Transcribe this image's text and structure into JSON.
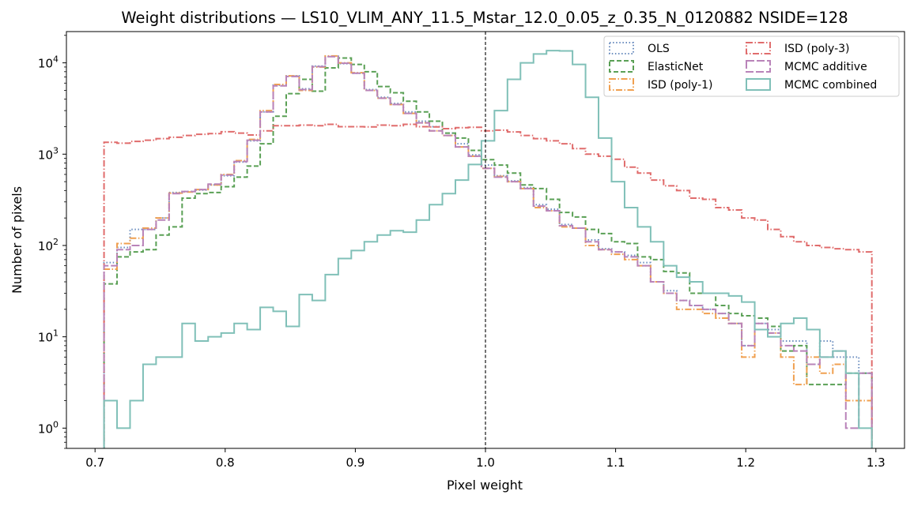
{
  "chart_data": {
    "type": "step-histogram",
    "title": "Weight distributions — LS10_VLIM_ANY_11.5_Mstar_12.0_0.05_z_0.35_N_0120882  NSIDE=128",
    "xlabel": "Pixel weight",
    "ylabel": "Number of pixels",
    "xlim": [
      0.678,
      1.322
    ],
    "ylim": [
      0.6,
      22000
    ],
    "yscale": "log",
    "xticks": [
      "0.7",
      "0.8",
      "0.9",
      "1.0",
      "1.1",
      "1.2",
      "1.3"
    ],
    "xtick_values": [
      0.7,
      0.8,
      0.9,
      1.0,
      1.1,
      1.2,
      1.3
    ],
    "yticks": [
      {
        "value": 1,
        "base": "10",
        "exp": "0"
      },
      {
        "value": 10,
        "base": "10",
        "exp": "1"
      },
      {
        "value": 100,
        "base": "10",
        "exp": "2"
      },
      {
        "value": 1000,
        "base": "10",
        "exp": "3"
      },
      {
        "value": 10000,
        "base": "10",
        "exp": "4"
      }
    ],
    "reference_line": {
      "x": 1.0,
      "style": "dashed",
      "color": "#000000"
    },
    "bins": {
      "start": 0.7069,
      "width": 0.01,
      "count": 59
    },
    "legend": {
      "location": "upper right",
      "columns": 2
    },
    "series": [
      {
        "name": "OLS",
        "color": "#6c8ebf",
        "dash": "1.5,2.6",
        "values": [
          65,
          95,
          150,
          150,
          200,
          380,
          390,
          405,
          460,
          580,
          820,
          1400,
          2900,
          5700,
          7200,
          5200,
          9200,
          11800,
          9800,
          7700,
          5100,
          4200,
          3600,
          2900,
          2300,
          2000,
          1700,
          1300,
          980,
          760,
          580,
          510,
          430,
          280,
          250,
          170,
          155,
          115,
          92,
          85,
          78,
          65,
          40,
          32,
          25,
          22,
          20,
          18,
          14,
          8,
          14,
          12,
          9,
          9,
          5,
          9,
          6,
          6,
          4
        ]
      },
      {
        "name": "ElasticNet",
        "color": "#5aa055",
        "dash": "6,3",
        "values": [
          38,
          75,
          85,
          90,
          130,
          160,
          330,
          370,
          380,
          440,
          560,
          740,
          1300,
          2600,
          4600,
          6600,
          4900,
          8800,
          11300,
          9600,
          8000,
          5500,
          4700,
          3800,
          2900,
          2300,
          1700,
          1500,
          1100,
          870,
          760,
          620,
          460,
          420,
          320,
          230,
          205,
          150,
          135,
          110,
          105,
          75,
          70,
          52,
          50,
          30,
          30,
          22,
          18,
          17,
          16,
          13,
          7,
          8,
          3,
          3,
          3,
          4,
          4
        ]
      },
      {
        "name": "ISD (poly-1)",
        "color": "#f0a050",
        "dash": "8,2.5,1.5,2.5",
        "values": [
          55,
          105,
          120,
          155,
          200,
          375,
          385,
          410,
          460,
          600,
          850,
          1450,
          3000,
          5800,
          7200,
          5000,
          9000,
          11900,
          10000,
          7800,
          5000,
          4100,
          3500,
          2800,
          2200,
          1800,
          1600,
          1200,
          950,
          700,
          570,
          500,
          420,
          260,
          240,
          160,
          155,
          100,
          90,
          80,
          70,
          60,
          40,
          30,
          20,
          20,
          18,
          16,
          14,
          6,
          12,
          11,
          6,
          3,
          6,
          4,
          5,
          2,
          2
        ]
      },
      {
        "name": "ISD (poly-3)",
        "color": "#e06c6c",
        "dash": "8,2.5,1.5,2.5",
        "values": [
          1350,
          1320,
          1380,
          1420,
          1480,
          1530,
          1600,
          1650,
          1680,
          1760,
          1700,
          1620,
          1800,
          2050,
          2050,
          2080,
          2050,
          2120,
          2000,
          2000,
          1990,
          2080,
          2050,
          2120,
          2000,
          1990,
          1900,
          1950,
          1970,
          1800,
          1830,
          1750,
          1600,
          1480,
          1400,
          1300,
          1150,
          1000,
          950,
          880,
          720,
          620,
          520,
          450,
          400,
          330,
          320,
          260,
          245,
          200,
          190,
          150,
          125,
          110,
          100,
          95,
          92,
          90,
          85
        ]
      },
      {
        "name": "MCMC additive",
        "color": "#b983b9",
        "dash": "10,3",
        "values": [
          60,
          90,
          100,
          150,
          190,
          370,
          390,
          410,
          470,
          590,
          830,
          1420,
          2900,
          5600,
          7100,
          5100,
          9100,
          11700,
          9900,
          7700,
          5000,
          4100,
          3500,
          2800,
          2200,
          1800,
          1600,
          1200,
          950,
          700,
          560,
          500,
          420,
          270,
          240,
          165,
          155,
          110,
          90,
          85,
          75,
          60,
          40,
          30,
          25,
          22,
          20,
          18,
          14,
          8,
          14,
          11,
          8,
          7,
          5,
          6,
          7,
          1,
          4
        ]
      },
      {
        "name": "MCMC combined",
        "color": "#80c0b8",
        "dash": "",
        "values": [
          2,
          1,
          2,
          5,
          6,
          6,
          14,
          9,
          10,
          11,
          14,
          12,
          21,
          19,
          13,
          29,
          25,
          48,
          72,
          88,
          110,
          130,
          145,
          140,
          190,
          280,
          370,
          520,
          770,
          1400,
          3000,
          6600,
          10000,
          12500,
          13600,
          13500,
          9600,
          4200,
          1500,
          500,
          260,
          160,
          110,
          60,
          45,
          40,
          30,
          30,
          28,
          24,
          12,
          10,
          14,
          16,
          12,
          6,
          7,
          4,
          1
        ]
      }
    ]
  }
}
